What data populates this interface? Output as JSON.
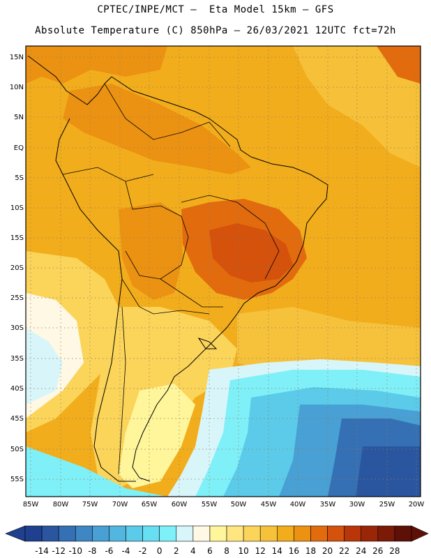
{
  "header": {
    "line1": "CPTEC/INPE/MCT –  Eta Model 15km – GFS",
    "line2": "Absolute Temperature (C) 850hPa – 26/03/2021 12UTC fct=72h"
  },
  "map": {
    "lat_labels": [
      "15N",
      "10N",
      "5N",
      "EQ",
      "5S",
      "10S",
      "15S",
      "20S",
      "25S",
      "30S",
      "35S",
      "40S",
      "45S",
      "50S",
      "55S"
    ],
    "lon_labels": [
      "85W",
      "80W",
      "75W",
      "70W",
      "65W",
      "60W",
      "55W",
      "50W",
      "45W",
      "40W",
      "35W",
      "30W",
      "25W",
      "20W"
    ]
  },
  "colorbar": {
    "labels": [
      "-14",
      "-12",
      "-10",
      "-8",
      "-6",
      "-4",
      "-2",
      "0",
      "2",
      "4",
      "6",
      "8",
      "10",
      "12",
      "14",
      "16",
      "18",
      "20",
      "22",
      "24",
      "26",
      "28"
    ],
    "colors": [
      "#1f3f8f",
      "#2a56a0",
      "#3570b4",
      "#3f86c4",
      "#48a0d4",
      "#52b6e0",
      "#5ccbea",
      "#66dff2",
      "#80f0f8",
      "#d8f6fa",
      "#fff8e4",
      "#fff59a",
      "#ffe680",
      "#fbd45a",
      "#f6c23c",
      "#f2ad1c",
      "#ec9212",
      "#e26b0e",
      "#d4520c",
      "#b8360a",
      "#9a2608",
      "#7c1a08",
      "#5e1006"
    ]
  },
  "colors": {
    "ocean_tropical": "#f2ad1c",
    "land_warm": "#ec9212",
    "land_hot": "#e26b0e",
    "cold_ocean": "#48a0d4",
    "very_cold": "#2a56a0"
  }
}
